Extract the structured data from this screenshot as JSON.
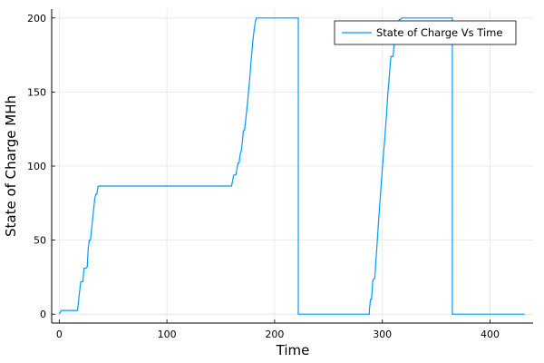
{
  "chart_data": {
    "type": "line",
    "xlabel": "Time",
    "ylabel": "State of Charge MHh",
    "xlim": [
      -7,
      440
    ],
    "ylim": [
      -6,
      206
    ],
    "x_ticks": [
      0,
      100,
      200,
      300,
      400
    ],
    "y_ticks": [
      0,
      50,
      100,
      150,
      200
    ],
    "x_tick_labels": [
      "0",
      "100",
      "200",
      "300",
      "400"
    ],
    "y_tick_labels": [
      "0",
      "50",
      "100",
      "150",
      "200"
    ],
    "grid": true,
    "legend_position": "top-right",
    "series": [
      {
        "name": "State of Charge Vs Time",
        "color": "#009AFA",
        "points": [
          [
            0,
            0
          ],
          [
            2,
            2.5
          ],
          [
            3,
            2.5
          ],
          [
            17,
            2.5
          ],
          [
            19,
            16
          ],
          [
            20,
            22
          ],
          [
            21,
            22
          ],
          [
            22,
            22
          ],
          [
            23,
            31
          ],
          [
            25,
            31
          ],
          [
            26,
            32
          ],
          [
            27,
            45
          ],
          [
            28,
            50
          ],
          [
            29,
            50
          ],
          [
            30,
            57
          ],
          [
            31,
            64
          ],
          [
            32,
            71
          ],
          [
            33,
            78
          ],
          [
            34,
            81
          ],
          [
            35,
            81
          ],
          [
            36,
            86
          ],
          [
            37,
            86.5
          ],
          [
            40,
            86.5
          ],
          [
            160,
            86.5
          ],
          [
            161,
            90
          ],
          [
            162,
            94
          ],
          [
            163,
            94
          ],
          [
            164,
            94
          ],
          [
            165,
            98
          ],
          [
            166,
            102
          ],
          [
            167,
            102
          ],
          [
            168,
            108
          ],
          [
            169,
            110
          ],
          [
            170,
            116
          ],
          [
            171,
            124
          ],
          [
            172,
            124
          ],
          [
            173,
            130
          ],
          [
            174,
            137
          ],
          [
            175,
            144
          ],
          [
            176,
            152
          ],
          [
            177,
            160
          ],
          [
            178,
            170
          ],
          [
            179,
            178
          ],
          [
            180,
            186
          ],
          [
            181,
            192
          ],
          [
            182,
            197
          ],
          [
            183,
            200
          ],
          [
            222,
            200
          ],
          [
            222,
            0
          ],
          [
            225,
            0
          ],
          [
            288,
            0
          ],
          [
            288,
            3
          ],
          [
            289,
            10
          ],
          [
            290,
            10
          ],
          [
            291,
            22
          ],
          [
            292,
            24
          ],
          [
            293,
            24
          ],
          [
            294,
            36
          ],
          [
            295,
            46
          ],
          [
            296,
            57
          ],
          [
            297,
            68
          ],
          [
            298,
            78
          ],
          [
            299,
            88
          ],
          [
            300,
            98
          ],
          [
            301,
            108
          ],
          [
            302,
            116
          ],
          [
            303,
            126
          ],
          [
            304,
            136
          ],
          [
            305,
            148
          ],
          [
            306,
            156
          ],
          [
            307,
            166
          ],
          [
            308,
            174
          ],
          [
            310,
            174
          ],
          [
            311,
            183
          ],
          [
            312,
            190
          ],
          [
            313,
            195
          ],
          [
            314,
            195
          ],
          [
            315,
            198
          ],
          [
            316,
            199
          ],
          [
            317,
            199
          ],
          [
            318,
            200
          ],
          [
            365,
            200
          ],
          [
            365,
            0
          ],
          [
            368,
            0
          ],
          [
            432,
            0
          ]
        ]
      }
    ]
  }
}
